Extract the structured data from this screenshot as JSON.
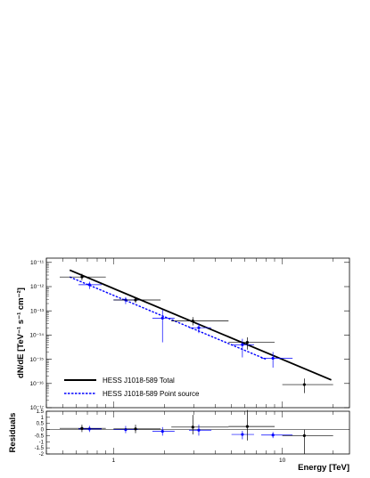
{
  "chart_data": [
    {
      "type": "scatter",
      "panel": "spectrum",
      "xscale": "log",
      "yscale": "log",
      "xlim": [
        0.4,
        25
      ],
      "ylim": [
        1e-17,
        1.5e-11
      ],
      "ylabel": "dN/dE [TeV⁻¹ s⁻¹ cm⁻²]",
      "ytick_labels": [
        "10⁻¹¹",
        "10⁻¹²",
        "10⁻¹³",
        "10⁻¹⁴",
        "10⁻¹⁵",
        "10⁻¹⁶",
        "10⁻¹⁷"
      ],
      "xtick_labels": [
        "1",
        "10"
      ],
      "legend_position": "bottom-left",
      "series": [
        {
          "name": "HESS J1018-589 Total",
          "kind": "points",
          "color": "#000000",
          "points": [
            {
              "x": 0.65,
              "y": 2.5e-12,
              "xlo": 0.48,
              "xhi": 0.9,
              "ylo": 1.8e-12,
              "yhi": 3.4e-12
            },
            {
              "x": 1.35,
              "y": 2.8e-13,
              "xlo": 1.0,
              "xhi": 1.9,
              "ylo": 2.1e-13,
              "yhi": 3.6e-13
            },
            {
              "x": 2.95,
              "y": 3.8e-14,
              "xlo": 2.2,
              "xhi": 4.8,
              "ylo": 2.5e-14,
              "yhi": 5.5e-14
            },
            {
              "x": 6.2,
              "y": 5e-15,
              "xlo": 4.8,
              "xhi": 9.0,
              "ylo": 2.5e-15,
              "yhi": 8e-15
            },
            {
              "x": 13.5,
              "y": 9e-17,
              "xlo": 10.0,
              "xhi": 20.0,
              "ylo": 4e-17,
              "yhi": 1.6e-16
            }
          ]
        },
        {
          "name": "HESS J1018-589 Point source",
          "kind": "points",
          "color": "#0000ff",
          "points": [
            {
              "x": 0.72,
              "y": 1.2e-12,
              "xlo": 0.62,
              "xhi": 0.85,
              "ylo": 8e-13,
              "yhi": 1.6e-12
            },
            {
              "x": 1.18,
              "y": 2.8e-13,
              "xlo": 1.0,
              "xhi": 1.4,
              "ylo": 1.9e-13,
              "yhi": 3.7e-13
            },
            {
              "x": 1.95,
              "y": 5e-14,
              "xlo": 1.7,
              "xhi": 2.3,
              "ylo": 5e-15,
              "yhi": 1.1e-13
            },
            {
              "x": 3.2,
              "y": 2e-14,
              "xlo": 2.8,
              "xhi": 3.8,
              "ylo": 1.2e-14,
              "yhi": 3e-14
            },
            {
              "x": 5.8,
              "y": 4e-15,
              "xlo": 5.0,
              "xhi": 6.8,
              "ylo": 1.2e-15,
              "yhi": 7e-15
            },
            {
              "x": 8.8,
              "y": 1.1e-15,
              "xlo": 7.5,
              "xhi": 11.5,
              "ylo": 4.5e-16,
              "yhi": 2e-15
            }
          ]
        },
        {
          "name": "HESS J1018-589 Total",
          "kind": "line",
          "color": "#000000",
          "style": "solid",
          "x": [
            0.55,
            19.5
          ],
          "y": [
            4.8e-12,
            1.4e-16
          ]
        },
        {
          "name": "HESS J1018-589 Point source",
          "kind": "line",
          "color": "#0000ff",
          "style": "dashed",
          "x": [
            0.55,
            8.0
          ],
          "y": [
            2.5e-12,
            1e-15
          ]
        }
      ]
    },
    {
      "type": "scatter",
      "panel": "residuals",
      "xscale": "log",
      "xlim": [
        0.4,
        25
      ],
      "ylim": [
        -2,
        1.5
      ],
      "ylabel": "Residuals",
      "xlabel": "Energy [TeV]",
      "ytick_labels": [
        "1.5",
        "1",
        "0.5",
        "0",
        "-0.5",
        "-1",
        "-1.5",
        "-2"
      ],
      "yticks": [
        1.5,
        1,
        0.5,
        0,
        -0.5,
        -1,
        -1.5,
        -2
      ],
      "xtick_labels": [
        "1",
        "10"
      ],
      "series": [
        {
          "name": "HESS J1018-589 Total",
          "color": "#000000",
          "points": [
            {
              "x": 0.65,
              "y": 0.1,
              "xlo": 0.48,
              "xhi": 0.9,
              "ylo": -0.2,
              "yhi": 0.4
            },
            {
              "x": 1.35,
              "y": 0.05,
              "xlo": 1.0,
              "xhi": 1.9,
              "ylo": -0.3,
              "yhi": 0.4
            },
            {
              "x": 2.95,
              "y": 0.2,
              "xlo": 2.2,
              "xhi": 4.8,
              "ylo": -0.4,
              "yhi": 1.2
            },
            {
              "x": 6.2,
              "y": 0.25,
              "xlo": 4.8,
              "xhi": 9.0,
              "ylo": -0.9,
              "yhi": 1.6
            },
            {
              "x": 13.5,
              "y": -0.5,
              "xlo": 10.0,
              "xhi": 20.0,
              "ylo": -2.0,
              "yhi": 0.0
            }
          ]
        },
        {
          "name": "HESS J1018-589 Point source",
          "color": "#0000ff",
          "points": [
            {
              "x": 0.72,
              "y": 0.05,
              "xlo": 0.62,
              "xhi": 0.85,
              "ylo": -0.2,
              "yhi": 0.3
            },
            {
              "x": 1.18,
              "y": 0.0,
              "xlo": 1.0,
              "xhi": 1.4,
              "ylo": -0.3,
              "yhi": 0.3
            },
            {
              "x": 1.95,
              "y": -0.15,
              "xlo": 1.7,
              "xhi": 2.3,
              "ylo": -0.5,
              "yhi": 0.2
            },
            {
              "x": 3.2,
              "y": -0.05,
              "xlo": 2.8,
              "xhi": 3.8,
              "ylo": -0.5,
              "yhi": 0.4
            },
            {
              "x": 5.8,
              "y": -0.4,
              "xlo": 5.0,
              "xhi": 6.8,
              "ylo": -0.8,
              "yhi": -0.1
            },
            {
              "x": 8.8,
              "y": -0.45,
              "xlo": 7.5,
              "xhi": 11.5,
              "ylo": -0.7,
              "yhi": -0.2
            }
          ]
        }
      ]
    }
  ]
}
